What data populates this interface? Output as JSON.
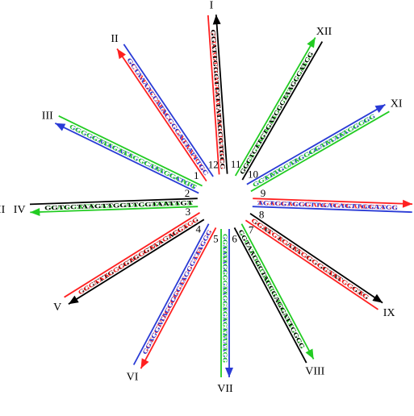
{
  "colors": {
    "red": "#ff2020",
    "blue": "#2a3bd6",
    "green": "#22cc22",
    "black": "#000000"
  },
  "edge_label": "II",
  "arms": [
    {
      "id": 1,
      "roman": "I",
      "number": "12",
      "strands": [
        {
          "color": "red",
          "dir": "in",
          "seq": "GTTCAGTTCAGGCACACTCGTAATCCG"
        },
        {
          "color": "black",
          "dir": "out",
          "seq": "GGATTGGGTTATTATAGCGTGCC"
        }
      ]
    },
    {
      "id": 2,
      "roman": "II",
      "number": "1",
      "strands": [
        {
          "color": "red",
          "dir": "out",
          "seq": "GCCATGGTATACGCGATAAACGC"
        },
        {
          "color": "blue",
          "dir": "in",
          "seq": "GCTAAAACCATACCGCAGTATTTGC"
        }
      ]
    },
    {
      "id": 3,
      "roman": "III",
      "number": "2",
      "strands": [
        {
          "color": "blue",
          "dir": "out",
          "seq": "GCGGCATACATTGCCATACCATGG"
        },
        {
          "color": "green",
          "dir": "in",
          "seq": "CGCCGTATGTAACGCTATGGCATT"
        }
      ]
    },
    {
      "id": 4,
      "roman": "IV",
      "number": "3",
      "strands": [
        {
          "color": "green",
          "dir": "out",
          "seq": "CCAGGATTCAACCAAGCATTAACA"
        },
        {
          "color": "black",
          "dir": "in",
          "seq": "GGTCCTAAGTTGGTTCGTAATTGT"
        }
      ]
    },
    {
      "id": 5,
      "roman": "V",
      "number": "4",
      "strands": [
        {
          "color": "black",
          "dir": "out",
          "seq": "GCGTTTGCCGTGCGTAAGACCTCG"
        },
        {
          "color": "red",
          "dir": "in",
          "seq": "CGCAAACGGCACGCATTCTGGAGC"
        }
      ]
    },
    {
      "id": 6,
      "roman": "VI",
      "number": "5",
      "strands": [
        {
          "color": "red",
          "dir": "out",
          "seq": "GCTCCTATGCCGGATCGCAATCCG"
        },
        {
          "color": "blue",
          "dir": "in",
          "seq": "CGAGGATACGGCCTAGCGTTAGGC"
        }
      ]
    },
    {
      "id": 7,
      "roman": "VII",
      "number": "6",
      "strands": [
        {
          "color": "blue",
          "dir": "out",
          "seq": "GCAATAGCCGTAGCTGACTTAAAGC"
        },
        {
          "color": "green",
          "dir": "in",
          "seq": "CGTTATCGGCATCGACTGAATTTCG"
        }
      ]
    },
    {
      "id": 8,
      "roman": "VIII",
      "number": "7",
      "strands": [
        {
          "color": "green",
          "dir": "out",
          "seq": "GCCATTGCGATGGCTCCTAAGCGG"
        },
        {
          "color": "black",
          "dir": "in",
          "seq": "CGTAACGCTACCGAGGATTCGCC"
        }
      ]
    },
    {
      "id": 9,
      "roman": "IX",
      "number": "8",
      "strands": [
        {
          "color": "black",
          "dir": "out",
          "seq": "GCATCTCATACGGGCTATCCGTG"
        },
        {
          "color": "red",
          "dir": "in",
          "seq": "CGTAGAGTATGCCCGATAGGCAC"
        }
      ]
    },
    {
      "id": 10,
      "roman": "X",
      "number": "9",
      "strands": [
        {
          "color": "red",
          "dir": "out",
          "seq": "TGAGCACGGAACTGTCAACCTTGC"
        },
        {
          "color": "blue",
          "dir": "in",
          "seq": "ACTCGTGCCTTGACAGTTGGAACG"
        }
      ]
    },
    {
      "id": 11,
      "roman": "XI",
      "number": "10",
      "strands": [
        {
          "color": "blue",
          "dir": "out",
          "seq": "GCTTAGCATGCCGATAATACGCGG"
        },
        {
          "color": "green",
          "dir": "in",
          "seq": "CGAATCGTACGGCTATTATGCGCC"
        }
      ]
    },
    {
      "id": 12,
      "roman": "XII",
      "number": "11",
      "strands": [
        {
          "color": "green",
          "dir": "out",
          "seq": "CCGAGAACACTAGCGATTCGGTAGC"
        },
        {
          "color": "black",
          "dir": "in",
          "seq": "GGCTCTTGTGATCGCTAAGCCATCG"
        }
      ]
    }
  ]
}
